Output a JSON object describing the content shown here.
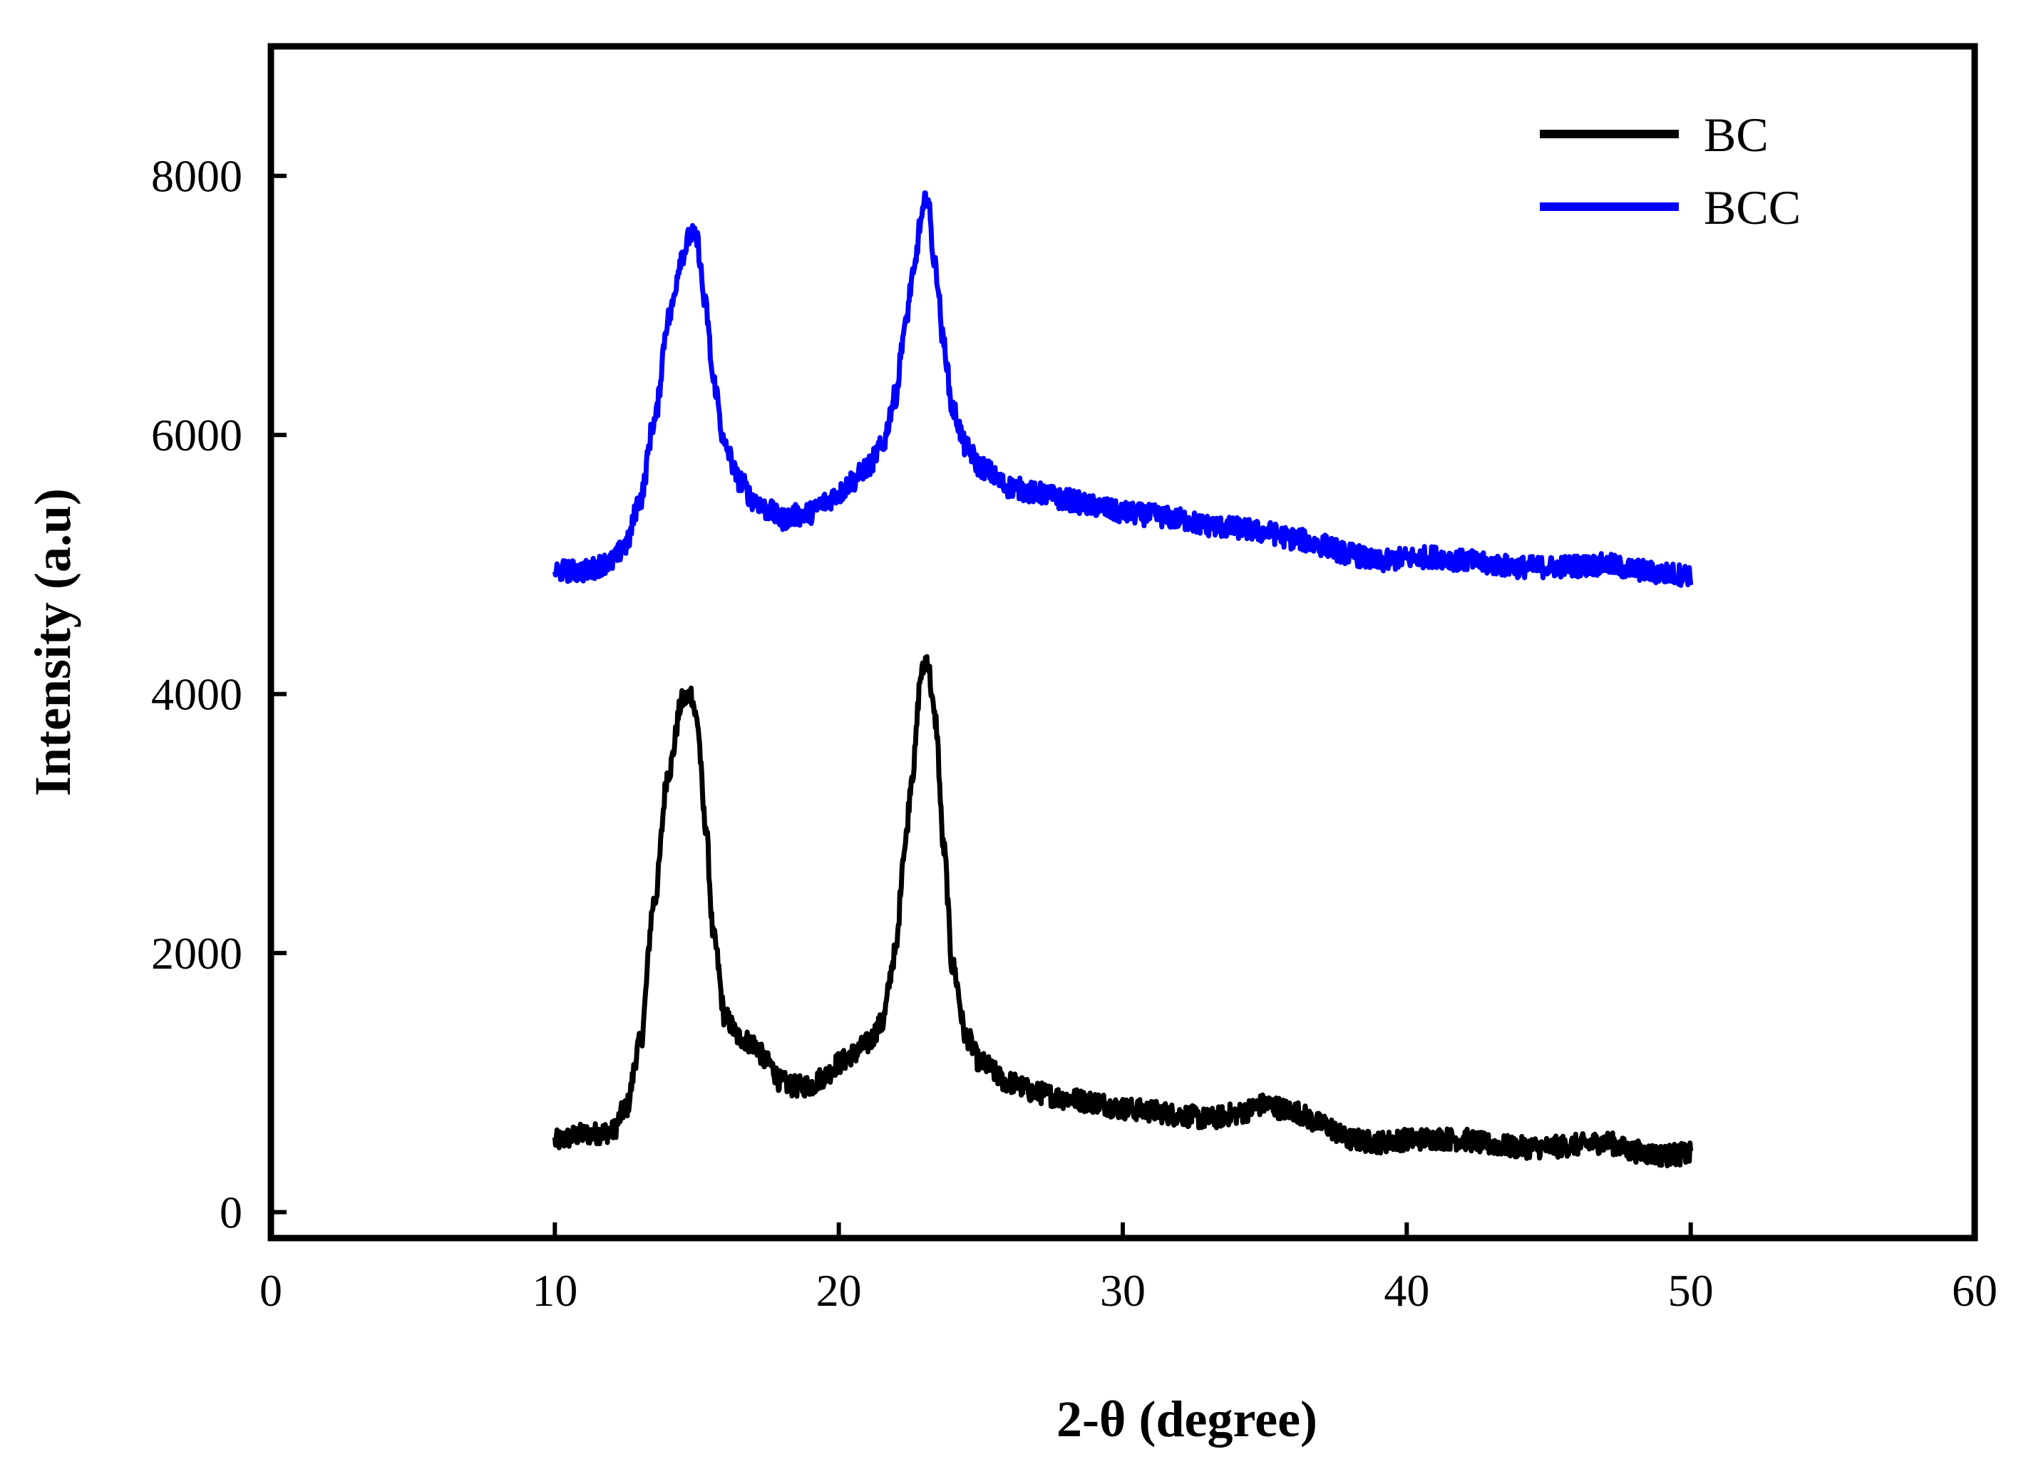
{
  "chart_data": {
    "type": "line",
    "title": "",
    "xlabel": "2-θ (degree)",
    "ylabel": "Intensity (a.u)",
    "xlim": [
      0,
      60
    ],
    "ylim": [
      -200,
      9000
    ],
    "xticks": [
      0,
      10,
      20,
      30,
      40,
      50,
      60
    ],
    "xtick_labels": [
      "0",
      "10",
      "20",
      "30",
      "40",
      "50",
      "60"
    ],
    "yticks": [
      0,
      2000,
      4000,
      6000,
      8000
    ],
    "ytick_labels": [
      "0",
      "2000",
      "4000",
      "6000",
      "8000"
    ],
    "grid": false,
    "legend_position": "top-right",
    "series": [
      {
        "name": "BC",
        "color": "#000000",
        "x": [
          10,
          11,
          12,
          12.5,
          13,
          13.5,
          14,
          14.5,
          14.8,
          15,
          15.3,
          15.6,
          16,
          16.5,
          17,
          17.5,
          18,
          18.5,
          19,
          19.5,
          20,
          20.5,
          21,
          21.5,
          22,
          22.3,
          22.6,
          22.9,
          23.1,
          23.4,
          23.7,
          24,
          24.5,
          25,
          26,
          27,
          28,
          29,
          30,
          31,
          32,
          33,
          34,
          35,
          36,
          37,
          38,
          39,
          40,
          41,
          42,
          43,
          44,
          45,
          46,
          47,
          48,
          49,
          50
        ],
        "y": [
          550,
          600,
          620,
          800,
          1300,
          2400,
          3400,
          3950,
          4000,
          3800,
          3000,
          2100,
          1500,
          1350,
          1300,
          1150,
          1000,
          970,
          980,
          1050,
          1150,
          1220,
          1300,
          1450,
          2000,
          2800,
          3400,
          4150,
          4280,
          3800,
          2800,
          1900,
          1350,
          1150,
          1000,
          920,
          880,
          850,
          800,
          780,
          750,
          720,
          760,
          830,
          780,
          680,
          560,
          540,
          560,
          570,
          560,
          520,
          500,
          500,
          520,
          540,
          470,
          440,
          450
        ]
      },
      {
        "name": "BCC",
        "color": "#0000ff",
        "x": [
          10,
          11,
          12,
          12.5,
          13,
          13.5,
          14,
          14.5,
          14.8,
          15,
          15.3,
          15.6,
          16,
          16.5,
          17,
          17.5,
          18,
          18.5,
          19,
          19.5,
          20,
          20.5,
          21,
          21.5,
          22,
          22.3,
          22.6,
          22.9,
          23.1,
          23.4,
          23.7,
          24,
          24.5,
          25,
          26,
          27,
          28,
          29,
          30,
          31,
          32,
          33,
          34,
          35,
          36,
          37,
          38,
          39,
          40,
          41,
          42,
          43,
          44,
          45,
          46,
          47,
          48,
          49,
          50
        ],
        "y": [
          4950,
          4950,
          5020,
          5150,
          5500,
          6100,
          6900,
          7400,
          7550,
          7500,
          7000,
          6400,
          5900,
          5650,
          5500,
          5420,
          5350,
          5380,
          5400,
          5480,
          5550,
          5650,
          5750,
          5900,
          6300,
          6800,
          7200,
          7650,
          7850,
          7300,
          6700,
          6200,
          5900,
          5750,
          5600,
          5550,
          5500,
          5450,
          5400,
          5380,
          5350,
          5300,
          5280,
          5250,
          5200,
          5150,
          5080,
          5020,
          5050,
          5060,
          5030,
          5000,
          4980,
          4980,
          4990,
          5000,
          4960,
          4930,
          4920
        ]
      }
    ]
  }
}
